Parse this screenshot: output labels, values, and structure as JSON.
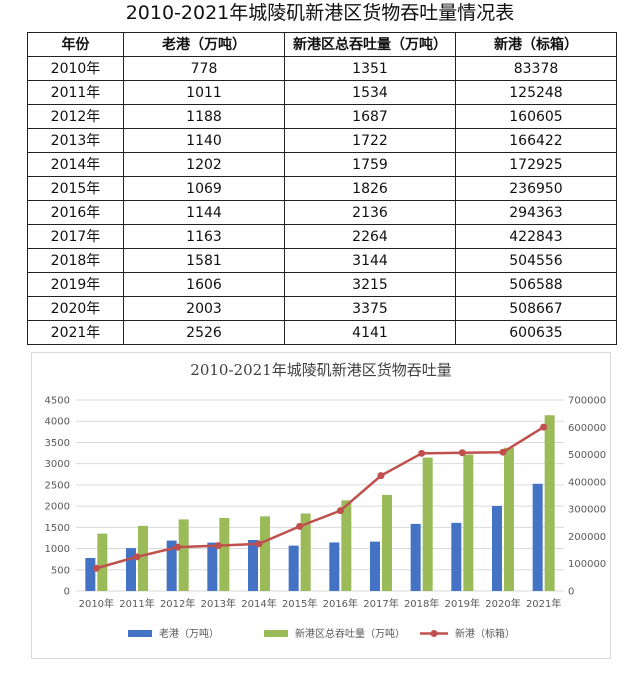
{
  "table": {
    "title": "2010-2021年城陵矶新港区货物吞吐量情况表",
    "headers": [
      "年份",
      "老港（万吨）",
      "新港区总吞吐量（万吨）",
      "新港（标箱）"
    ],
    "rows": [
      [
        "2010年",
        "778",
        "1351",
        "83378"
      ],
      [
        "2011年",
        "1011",
        "1534",
        "125248"
      ],
      [
        "2012年",
        "1188",
        "1687",
        "160605"
      ],
      [
        "2013年",
        "1140",
        "1722",
        "166422"
      ],
      [
        "2014年",
        "1202",
        "1759",
        "172925"
      ],
      [
        "2015年",
        "1069",
        "1826",
        "236950"
      ],
      [
        "2016年",
        "1144",
        "2136",
        "294363"
      ],
      [
        "2017年",
        "1163",
        "2264",
        "422843"
      ],
      [
        "2018年",
        "1581",
        "3144",
        "504556"
      ],
      [
        "2019年",
        "1606",
        "3215",
        "506588"
      ],
      [
        "2020年",
        "2003",
        "3375",
        "508667"
      ],
      [
        "2021年",
        "2526",
        "4141",
        "600635"
      ]
    ]
  },
  "chart_data": {
    "type": "bar",
    "title": "2010-2021年城陵矶新港区货物吞吐量",
    "categories": [
      "2010年",
      "2011年",
      "2012年",
      "2013年",
      "2014年",
      "2015年",
      "2016年",
      "2017年",
      "2018年",
      "2019年",
      "2020年",
      "2021年"
    ],
    "series": [
      {
        "name": "老港（万吨）",
        "type": "bar",
        "axis": "left",
        "color": "#4472c4",
        "values": [
          778,
          1011,
          1188,
          1140,
          1202,
          1069,
          1144,
          1163,
          1581,
          1606,
          2003,
          2526
        ]
      },
      {
        "name": "新港区总吞吐量（万吨）",
        "type": "bar",
        "axis": "left",
        "color": "#9bbb59",
        "values": [
          1351,
          1534,
          1687,
          1722,
          1759,
          1826,
          2136,
          2264,
          3144,
          3215,
          3375,
          4141
        ]
      },
      {
        "name": "新港（标箱）",
        "type": "line",
        "axis": "right",
        "color": "#c0504d",
        "values": [
          83378,
          125248,
          160605,
          166422,
          172925,
          236950,
          294363,
          422843,
          504556,
          506588,
          508667,
          600635
        ]
      }
    ],
    "y_left": {
      "min": 0,
      "max": 4500,
      "ticks": [
        "0",
        "500",
        "1000",
        "1500",
        "2000",
        "2500",
        "3000",
        "3500",
        "4000",
        "4500"
      ]
    },
    "y_right": {
      "min": 0,
      "max": 700000,
      "ticks": [
        "0",
        "100000",
        "200000",
        "300000",
        "400000",
        "500000",
        "600000",
        "700000"
      ]
    },
    "legend_position": "bottom",
    "grid": true
  }
}
